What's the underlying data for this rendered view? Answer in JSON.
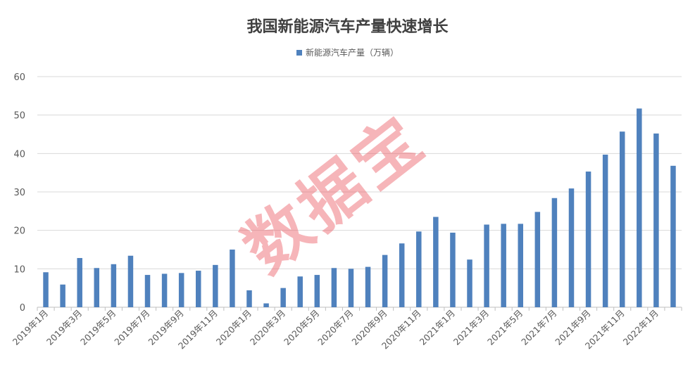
{
  "chart_data": {
    "type": "bar",
    "title": "我国新能源汽车产量快速增长",
    "legend_position": "top",
    "grid": true,
    "ylim": [
      0,
      60
    ],
    "yticks": [
      0,
      10,
      20,
      30,
      40,
      50,
      60
    ],
    "colors": {
      "bar": "#4f81bd",
      "grid": "#d9d9d9",
      "axis": "#bfbfbf",
      "watermark": "#eb5a64"
    },
    "categories": [
      "2019年1月",
      "2019年2月",
      "2019年3月",
      "2019年4月",
      "2019年5月",
      "2019年6月",
      "2019年7月",
      "2019年8月",
      "2019年9月",
      "2019年10月",
      "2019年11月",
      "2019年12月",
      "2020年1月",
      "2020年2月",
      "2020年3月",
      "2020年4月",
      "2020年5月",
      "2020年6月",
      "2020年7月",
      "2020年8月",
      "2020年9月",
      "2020年10月",
      "2020年11月",
      "2020年12月",
      "2021年1月",
      "2021年2月",
      "2021年3月",
      "2021年4月",
      "2021年5月",
      "2021年6月",
      "2021年7月",
      "2021年8月",
      "2021年9月",
      "2021年10月",
      "2021年11月",
      "2021年12月",
      "2022年1月",
      "2022年2月"
    ],
    "visible_tick_labels": [
      "2019年1月",
      "2019年3月",
      "2019年5月",
      "2019年7月",
      "2019年9月",
      "2019年11月",
      "2020年1月",
      "2020年3月",
      "2020年5月",
      "2020年7月",
      "2020年9月",
      "2020年11月",
      "2021年1月",
      "2021年3月",
      "2021年5月",
      "2021年7月",
      "2021年9月",
      "2021年11月",
      "2022年1月"
    ],
    "series": [
      {
        "name": "新能源汽车产量（万辆）",
        "values": [
          9.1,
          5.9,
          12.8,
          10.2,
          11.2,
          13.4,
          8.4,
          8.7,
          8.9,
          9.5,
          11.0,
          15.0,
          4.4,
          1.0,
          5.0,
          8.0,
          8.4,
          10.2,
          10.0,
          10.5,
          13.6,
          16.6,
          19.7,
          23.5,
          19.4,
          12.4,
          21.5,
          21.7,
          21.7,
          24.8,
          28.4,
          30.9,
          35.3,
          39.7,
          45.7,
          51.7,
          45.2,
          36.8
        ]
      }
    ],
    "watermark": "数据宝"
  }
}
